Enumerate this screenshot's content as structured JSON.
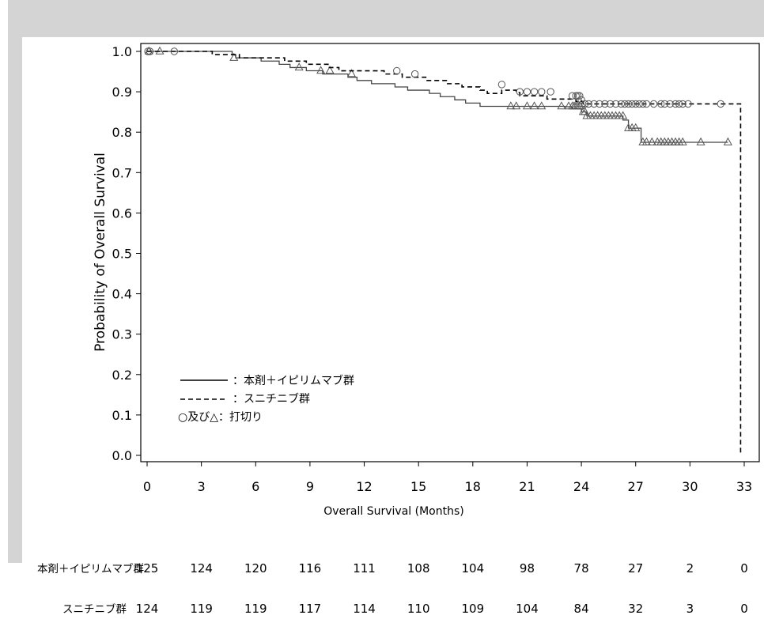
{
  "chart_data": {
    "type": "line",
    "subtype": "kaplan-meier",
    "xlabel": "Overall Survival (Months)",
    "ylabel": "Probability of Overall Survival",
    "xlim": [
      0,
      33
    ],
    "ylim": [
      0,
      1.0
    ],
    "xticks": [
      0,
      3,
      6,
      9,
      12,
      15,
      18,
      21,
      24,
      27,
      30,
      33
    ],
    "yticks": [
      "0.0",
      "0.1",
      "0.2",
      "0.3",
      "0.4",
      "0.5",
      "0.6",
      "0.7",
      "0.8",
      "0.9",
      "1.0"
    ],
    "grid": false,
    "legend_position": "bottom-left",
    "legend": [
      {
        "sample": "solid",
        "label": "：本剤＋イピリムマブ群"
      },
      {
        "sample": "dashed",
        "label": "：スニチニブ群"
      },
      {
        "sample": "markers",
        "label": "○及び△：打切り"
      }
    ],
    "series": [
      {
        "line_style": "solid",
        "marker": "triangle",
        "color": "#444444",
        "steps": [
          [
            0,
            1.0
          ],
          [
            4.7,
            0.992
          ],
          [
            4.9,
            0.984
          ],
          [
            6.3,
            0.976
          ],
          [
            7.3,
            0.968
          ],
          [
            7.9,
            0.96
          ],
          [
            8.8,
            0.952
          ],
          [
            9.7,
            0.944
          ],
          [
            11.1,
            0.936
          ],
          [
            11.6,
            0.928
          ],
          [
            12.4,
            0.92
          ],
          [
            13.7,
            0.912
          ],
          [
            14.4,
            0.904
          ],
          [
            15.6,
            0.896
          ],
          [
            16.2,
            0.888
          ],
          [
            17.0,
            0.88
          ],
          [
            17.6,
            0.872
          ],
          [
            18.4,
            0.864
          ],
          [
            23.1,
            0.863
          ],
          [
            23.5,
            0.858
          ],
          [
            24.0,
            0.85
          ],
          [
            24.3,
            0.84
          ],
          [
            26.3,
            0.83
          ],
          [
            26.6,
            0.81
          ],
          [
            27.3,
            0.775
          ],
          [
            32.1,
            0.775
          ]
        ],
        "censored": [
          [
            0.1,
            1.0
          ],
          [
            0.7,
            1.0
          ],
          [
            4.8,
            0.984
          ],
          [
            8.4,
            0.96
          ],
          [
            9.6,
            0.952
          ],
          [
            10.1,
            0.952
          ],
          [
            11.3,
            0.944
          ],
          [
            20.1,
            0.864
          ],
          [
            20.4,
            0.864
          ],
          [
            21.0,
            0.864
          ],
          [
            21.4,
            0.864
          ],
          [
            21.8,
            0.864
          ],
          [
            22.9,
            0.864
          ],
          [
            23.3,
            0.864
          ],
          [
            23.5,
            0.864
          ],
          [
            23.6,
            0.864
          ],
          [
            23.7,
            0.864
          ],
          [
            23.8,
            0.864
          ],
          [
            23.9,
            0.864
          ],
          [
            24.0,
            0.87
          ],
          [
            24.1,
            0.85
          ],
          [
            24.2,
            0.85
          ],
          [
            24.3,
            0.84
          ],
          [
            24.5,
            0.84
          ],
          [
            24.7,
            0.84
          ],
          [
            24.9,
            0.84
          ],
          [
            25.1,
            0.84
          ],
          [
            25.3,
            0.84
          ],
          [
            25.5,
            0.84
          ],
          [
            25.7,
            0.84
          ],
          [
            25.9,
            0.84
          ],
          [
            26.1,
            0.84
          ],
          [
            26.3,
            0.84
          ],
          [
            26.6,
            0.81
          ],
          [
            26.8,
            0.81
          ],
          [
            27.0,
            0.81
          ],
          [
            27.4,
            0.775
          ],
          [
            27.6,
            0.775
          ],
          [
            27.9,
            0.775
          ],
          [
            28.2,
            0.775
          ],
          [
            28.4,
            0.775
          ],
          [
            28.6,
            0.775
          ],
          [
            28.8,
            0.775
          ],
          [
            29.0,
            0.775
          ],
          [
            29.2,
            0.775
          ],
          [
            29.4,
            0.775
          ],
          [
            29.6,
            0.775
          ],
          [
            30.6,
            0.775
          ],
          [
            32.1,
            0.775
          ]
        ]
      },
      {
        "line_style": "dashed",
        "marker": "circle",
        "color": "#000000",
        "steps": [
          [
            0,
            1.0
          ],
          [
            3.6,
            0.992
          ],
          [
            5.1,
            0.984
          ],
          [
            7.6,
            0.976
          ],
          [
            8.8,
            0.968
          ],
          [
            10.0,
            0.96
          ],
          [
            10.6,
            0.952
          ],
          [
            12.0,
            0.952
          ],
          [
            13.1,
            0.944
          ],
          [
            14.1,
            0.936
          ],
          [
            15.4,
            0.928
          ],
          [
            16.6,
            0.92
          ],
          [
            17.4,
            0.912
          ],
          [
            18.4,
            0.904
          ],
          [
            18.8,
            0.896
          ],
          [
            19.6,
            0.904
          ],
          [
            20.4,
            0.898
          ],
          [
            20.6,
            0.89
          ],
          [
            22.1,
            0.882
          ],
          [
            23.7,
            0.876
          ],
          [
            24.1,
            0.87
          ],
          [
            32.8,
            0.87
          ],
          [
            32.8,
            0.0
          ]
        ],
        "censored": [
          [
            0.05,
            1.0
          ],
          [
            0.15,
            1.0
          ],
          [
            1.5,
            1.0
          ],
          [
            13.8,
            0.952
          ],
          [
            14.8,
            0.944
          ],
          [
            19.6,
            0.918
          ],
          [
            20.6,
            0.9
          ],
          [
            21.0,
            0.9
          ],
          [
            21.4,
            0.9
          ],
          [
            21.8,
            0.9
          ],
          [
            22.3,
            0.9
          ],
          [
            23.5,
            0.89
          ],
          [
            23.7,
            0.89
          ],
          [
            23.8,
            0.89
          ],
          [
            23.9,
            0.89
          ],
          [
            24.0,
            0.88
          ],
          [
            24.2,
            0.87
          ],
          [
            24.4,
            0.87
          ],
          [
            24.7,
            0.87
          ],
          [
            25.0,
            0.87
          ],
          [
            25.3,
            0.87
          ],
          [
            25.6,
            0.87
          ],
          [
            25.9,
            0.87
          ],
          [
            26.2,
            0.87
          ],
          [
            26.4,
            0.87
          ],
          [
            26.6,
            0.87
          ],
          [
            26.8,
            0.87
          ],
          [
            27.0,
            0.87
          ],
          [
            27.2,
            0.87
          ],
          [
            27.4,
            0.87
          ],
          [
            27.6,
            0.87
          ],
          [
            28.0,
            0.87
          ],
          [
            28.4,
            0.87
          ],
          [
            28.6,
            0.87
          ],
          [
            28.9,
            0.87
          ],
          [
            29.2,
            0.87
          ],
          [
            29.4,
            0.87
          ],
          [
            29.6,
            0.87
          ],
          [
            29.9,
            0.87
          ],
          [
            31.7,
            0.87
          ]
        ]
      }
    ],
    "risk_table": {
      "rows": [
        {
          "label": "本剤＋イピリムマブ群",
          "values": [
            "125",
            "124",
            "120",
            "116",
            "111",
            "108",
            "104",
            "98",
            "78",
            "27",
            "2",
            "0"
          ]
        },
        {
          "label": "スニチニブ群",
          "values": [
            "124",
            "119",
            "119",
            "117",
            "114",
            "110",
            "109",
            "104",
            "84",
            "32",
            "3",
            "0"
          ]
        }
      ]
    }
  }
}
